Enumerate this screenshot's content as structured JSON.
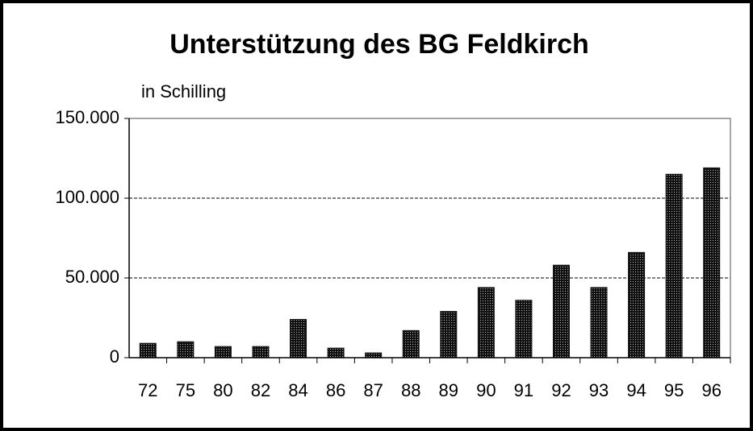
{
  "chart_data": {
    "type": "bar",
    "title": "Unterstützung des BG Feldkirch",
    "subtitle": "in Schilling",
    "categories": [
      "72",
      "75",
      "80",
      "82",
      "84",
      "86",
      "87",
      "88",
      "89",
      "90",
      "91",
      "92",
      "93",
      "94",
      "95",
      "96"
    ],
    "values": [
      9000,
      10000,
      7000,
      7000,
      24000,
      6000,
      3000,
      17000,
      29000,
      44000,
      36000,
      58000,
      44000,
      66000,
      115000,
      119000
    ],
    "color": "#111111",
    "ylim": [
      0,
      150000
    ],
    "yticks": [
      0,
      {
        "value": 50000,
        "label": "50.000"
      },
      {
        "value": 100000,
        "label": "100.000"
      },
      {
        "value": 150000,
        "label": "150.000"
      }
    ],
    "grid": true
  }
}
